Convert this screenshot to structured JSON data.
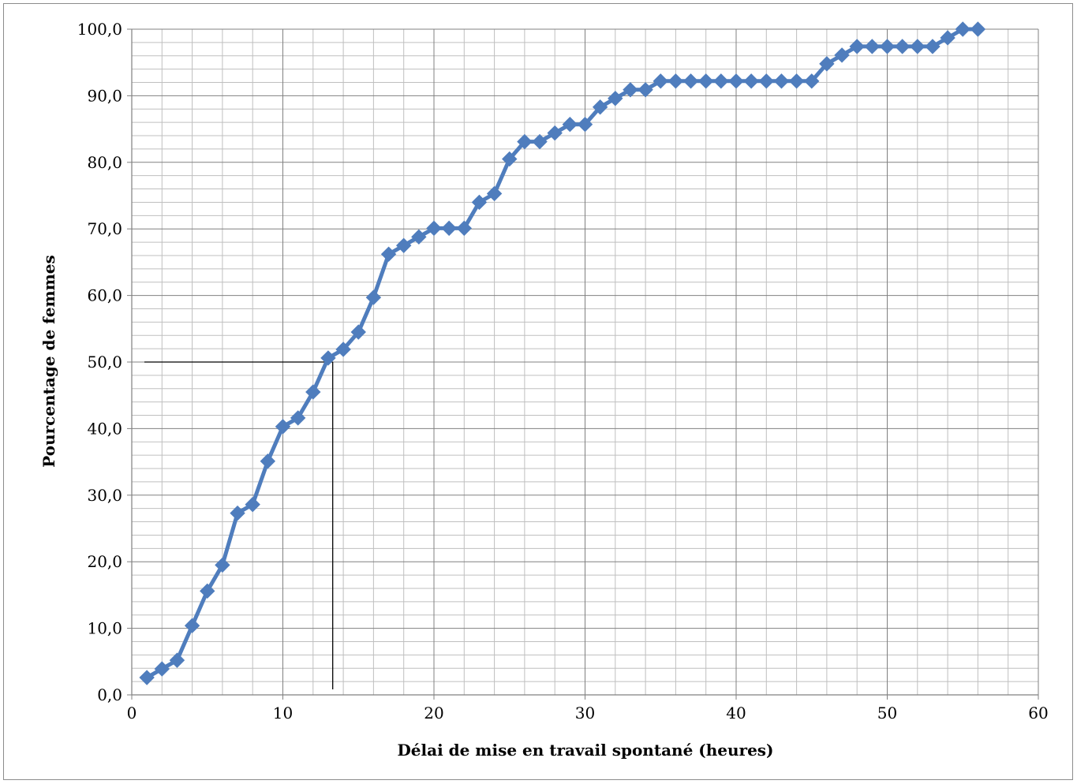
{
  "chart_data": {
    "type": "line",
    "xlabel": "Délai de mise en travail spontané (heures)",
    "ylabel": "Pourcentage de femmes",
    "xlim": [
      0,
      60
    ],
    "ylim": [
      0,
      100
    ],
    "x_ticks": [
      "0",
      "10",
      "20",
      "30",
      "40",
      "50",
      "60"
    ],
    "y_ticks": [
      "0,0",
      "10,0",
      "20,0",
      "30,0",
      "40,0",
      "50,0",
      "60,0",
      "70,0",
      "80,0",
      "90,0",
      "100,0"
    ],
    "grid": true,
    "legend": "none",
    "series": [
      {
        "color": "#4f7dbd",
        "marker": "diamond",
        "x": [
          1,
          2,
          3,
          4,
          5,
          6,
          7,
          8,
          9,
          10,
          11,
          12,
          13,
          14,
          15,
          16,
          17,
          18,
          19,
          20,
          21,
          22,
          23,
          24,
          25,
          26,
          27,
          28,
          29,
          30,
          31,
          32,
          33,
          34,
          35,
          36,
          37,
          38,
          39,
          40,
          41,
          42,
          43,
          44,
          45,
          46,
          47,
          48,
          49,
          50,
          51,
          52,
          53,
          54,
          55,
          56
        ],
        "values": [
          2.6,
          3.9,
          5.2,
          10.4,
          15.6,
          19.5,
          27.3,
          28.6,
          35.1,
          40.3,
          41.6,
          45.5,
          50.6,
          51.9,
          54.5,
          59.7,
          66.2,
          67.5,
          68.8,
          70.1,
          70.1,
          70.1,
          74.0,
          75.3,
          80.5,
          83.1,
          83.1,
          84.4,
          85.7,
          85.7,
          88.3,
          89.6,
          90.9,
          90.9,
          92.2,
          92.2,
          92.2,
          92.2,
          92.2,
          92.2,
          92.2,
          92.2,
          92.2,
          92.2,
          92.2,
          94.8,
          96.1,
          97.4,
          97.4,
          97.4,
          97.4,
          97.4,
          97.4,
          98.7,
          100.0,
          100.0
        ]
      }
    ],
    "annotations": {
      "median_y": 50.0,
      "median_x": 13.3,
      "line_color": "#000000"
    }
  }
}
